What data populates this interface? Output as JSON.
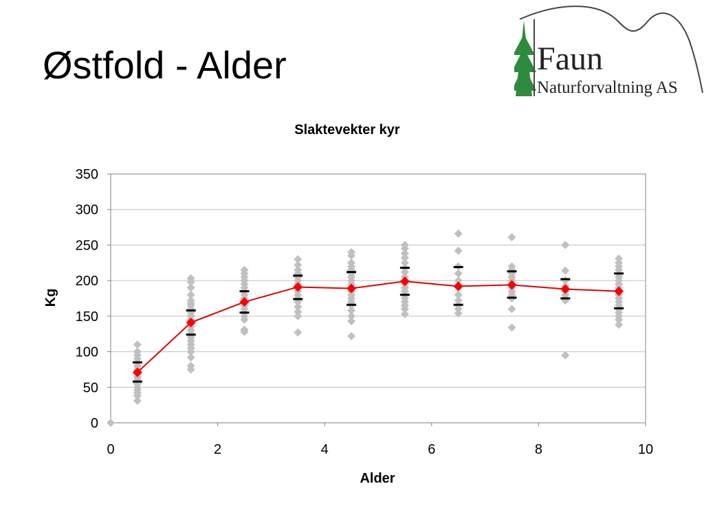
{
  "slide": {
    "title": "Østfold - Alder"
  },
  "logo": {
    "name": "Faun",
    "subtitle": "Naturforvaltning AS"
  },
  "colors": {
    "scatter": "#c0c0c0",
    "mean": "#ff0000",
    "mean_line": "#e00000",
    "range_marks": "#000000",
    "grid": "#c0c0c0",
    "tree": "#2e8b3e"
  },
  "chart_data": {
    "type": "scatter",
    "title": "Slaktevekter kyr",
    "xlabel": "Alder",
    "ylabel": "Kg",
    "xlim": [
      0,
      10
    ],
    "ylim": [
      0,
      350
    ],
    "xticks": [
      0,
      2,
      4,
      6,
      8,
      10
    ],
    "yticks": [
      0,
      50,
      100,
      150,
      200,
      250,
      300,
      350
    ],
    "grid": true,
    "legend": "none",
    "series": [
      {
        "kind": "individual",
        "points": [
          [
            0,
            0
          ],
          [
            0.5,
            110
          ],
          [
            0.5,
            100
          ],
          [
            0.5,
            95
          ],
          [
            0.5,
            90
          ],
          [
            0.5,
            85
          ],
          [
            0.5,
            80
          ],
          [
            0.5,
            75
          ],
          [
            0.5,
            72
          ],
          [
            0.5,
            68
          ],
          [
            0.5,
            65
          ],
          [
            0.5,
            62
          ],
          [
            0.5,
            58
          ],
          [
            0.5,
            55
          ],
          [
            0.5,
            50
          ],
          [
            0.5,
            46
          ],
          [
            0.5,
            42
          ],
          [
            0.5,
            38
          ],
          [
            0.5,
            31
          ],
          [
            1.5,
            203
          ],
          [
            1.5,
            198
          ],
          [
            1.5,
            190
          ],
          [
            1.5,
            180
          ],
          [
            1.5,
            172
          ],
          [
            1.5,
            168
          ],
          [
            1.5,
            165
          ],
          [
            1.5,
            160
          ],
          [
            1.5,
            155
          ],
          [
            1.5,
            150
          ],
          [
            1.5,
            145
          ],
          [
            1.5,
            140
          ],
          [
            1.5,
            135
          ],
          [
            1.5,
            130
          ],
          [
            1.5,
            125
          ],
          [
            1.5,
            120
          ],
          [
            1.5,
            115
          ],
          [
            1.5,
            110
          ],
          [
            1.5,
            105
          ],
          [
            1.5,
            100
          ],
          [
            1.5,
            92
          ],
          [
            1.5,
            80
          ],
          [
            1.5,
            75
          ],
          [
            2.5,
            215
          ],
          [
            2.5,
            210
          ],
          [
            2.5,
            205
          ],
          [
            2.5,
            200
          ],
          [
            2.5,
            195
          ],
          [
            2.5,
            190
          ],
          [
            2.5,
            185
          ],
          [
            2.5,
            180
          ],
          [
            2.5,
            175
          ],
          [
            2.5,
            170
          ],
          [
            2.5,
            165
          ],
          [
            2.5,
            160
          ],
          [
            2.5,
            155
          ],
          [
            2.5,
            150
          ],
          [
            2.5,
            145
          ],
          [
            2.5,
            131
          ],
          [
            2.5,
            128
          ],
          [
            3.5,
            230
          ],
          [
            3.5,
            222
          ],
          [
            3.5,
            215
          ],
          [
            3.5,
            210
          ],
          [
            3.5,
            205
          ],
          [
            3.5,
            200
          ],
          [
            3.5,
            195
          ],
          [
            3.5,
            190
          ],
          [
            3.5,
            185
          ],
          [
            3.5,
            180
          ],
          [
            3.5,
            175
          ],
          [
            3.5,
            170
          ],
          [
            3.5,
            163
          ],
          [
            3.5,
            156
          ],
          [
            3.5,
            150
          ],
          [
            3.5,
            127
          ],
          [
            4.5,
            240
          ],
          [
            4.5,
            235
          ],
          [
            4.5,
            225
          ],
          [
            4.5,
            220
          ],
          [
            4.5,
            215
          ],
          [
            4.5,
            210
          ],
          [
            4.5,
            205
          ],
          [
            4.5,
            200
          ],
          [
            4.5,
            195
          ],
          [
            4.5,
            190
          ],
          [
            4.5,
            185
          ],
          [
            4.5,
            180
          ],
          [
            4.5,
            175
          ],
          [
            4.5,
            170
          ],
          [
            4.5,
            165
          ],
          [
            4.5,
            158
          ],
          [
            4.5,
            150
          ],
          [
            4.5,
            143
          ],
          [
            4.5,
            122
          ],
          [
            5.5,
            250
          ],
          [
            5.5,
            245
          ],
          [
            5.5,
            238
          ],
          [
            5.5,
            232
          ],
          [
            5.5,
            225
          ],
          [
            5.5,
            218
          ],
          [
            5.5,
            212
          ],
          [
            5.5,
            205
          ],
          [
            5.5,
            200
          ],
          [
            5.5,
            195
          ],
          [
            5.5,
            190
          ],
          [
            5.5,
            185
          ],
          [
            5.5,
            180
          ],
          [
            5.5,
            175
          ],
          [
            5.5,
            170
          ],
          [
            5.5,
            165
          ],
          [
            5.5,
            160
          ],
          [
            5.5,
            153
          ],
          [
            6.5,
            266
          ],
          [
            6.5,
            242
          ],
          [
            6.5,
            220
          ],
          [
            6.5,
            210
          ],
          [
            6.5,
            200
          ],
          [
            6.5,
            190
          ],
          [
            6.5,
            180
          ],
          [
            6.5,
            172
          ],
          [
            6.5,
            165
          ],
          [
            6.5,
            160
          ],
          [
            6.5,
            154
          ],
          [
            7.5,
            261
          ],
          [
            7.5,
            220
          ],
          [
            7.5,
            215
          ],
          [
            7.5,
            210
          ],
          [
            7.5,
            205
          ],
          [
            7.5,
            200
          ],
          [
            7.5,
            195
          ],
          [
            7.5,
            190
          ],
          [
            7.5,
            185
          ],
          [
            7.5,
            180
          ],
          [
            7.5,
            175
          ],
          [
            7.5,
            160
          ],
          [
            7.5,
            134
          ],
          [
            8.5,
            250
          ],
          [
            8.5,
            214
          ],
          [
            8.5,
            200
          ],
          [
            8.5,
            192
          ],
          [
            8.5,
            185
          ],
          [
            8.5,
            180
          ],
          [
            8.5,
            175
          ],
          [
            8.5,
            172
          ],
          [
            8.5,
            95
          ],
          [
            9.5,
            231
          ],
          [
            9.5,
            225
          ],
          [
            9.5,
            220
          ],
          [
            9.5,
            215
          ],
          [
            9.5,
            210
          ],
          [
            9.5,
            205
          ],
          [
            9.5,
            200
          ],
          [
            9.5,
            195
          ],
          [
            9.5,
            190
          ],
          [
            9.5,
            185
          ],
          [
            9.5,
            180
          ],
          [
            9.5,
            175
          ],
          [
            9.5,
            170
          ],
          [
            9.5,
            165
          ],
          [
            9.5,
            160
          ],
          [
            9.5,
            155
          ],
          [
            9.5,
            150
          ],
          [
            9.5,
            145
          ],
          [
            9.5,
            138
          ]
        ]
      },
      {
        "kind": "upper_mark",
        "points": [
          [
            0.5,
            85
          ],
          [
            1.5,
            158
          ],
          [
            2.5,
            185
          ],
          [
            3.5,
            207
          ],
          [
            4.5,
            212
          ],
          [
            5.5,
            218
          ],
          [
            6.5,
            219
          ],
          [
            7.5,
            213
          ],
          [
            8.5,
            202
          ],
          [
            9.5,
            210
          ]
        ]
      },
      {
        "kind": "lower_mark",
        "points": [
          [
            0.5,
            58
          ],
          [
            1.5,
            124
          ],
          [
            2.5,
            155
          ],
          [
            3.5,
            174
          ],
          [
            4.5,
            166
          ],
          [
            5.5,
            180
          ],
          [
            6.5,
            166
          ],
          [
            7.5,
            176
          ],
          [
            8.5,
            175
          ],
          [
            9.5,
            161
          ]
        ]
      },
      {
        "kind": "mean",
        "points": [
          [
            0.5,
            71
          ],
          [
            1.5,
            141
          ],
          [
            2.5,
            170
          ],
          [
            3.5,
            191
          ],
          [
            4.5,
            189
          ],
          [
            5.5,
            199
          ],
          [
            6.5,
            192
          ],
          [
            7.5,
            194
          ],
          [
            8.5,
            188
          ],
          [
            9.5,
            185
          ]
        ]
      }
    ]
  }
}
